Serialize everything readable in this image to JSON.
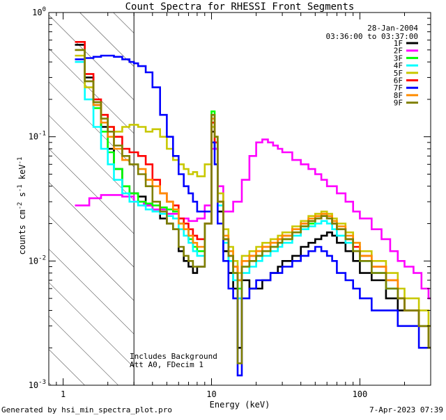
{
  "chart_data": {
    "type": "line",
    "title": "Count Spectra for RHESSI Front Segments",
    "xlabel": "Energy (keV)",
    "ylabel_parts": [
      "counts cm",
      "-2",
      " s",
      "-1",
      " keV",
      "-1"
    ],
    "xscale": "log",
    "yscale": "log",
    "xlim": [
      0.8,
      300
    ],
    "ylim": [
      0.001,
      1
    ],
    "xticks": [
      {
        "v": 1,
        "label": "1"
      },
      {
        "v": 10,
        "label": "10"
      },
      {
        "v": 100,
        "label": "100"
      }
    ],
    "yticks": [
      {
        "v": 1,
        "base": "10",
        "exp": "0"
      },
      {
        "v": 0.1,
        "base": "10",
        "exp": "-1"
      },
      {
        "v": 0.01,
        "base": "10",
        "exp": "-2"
      },
      {
        "v": 0.001,
        "base": "10",
        "exp": "-3"
      }
    ],
    "shaded_region": {
      "x_max": 3,
      "style": "hatch"
    },
    "info_lines": [
      "28-Jan-2004",
      "03:36:00 to 03:37:00"
    ],
    "notes": [
      "Includes Background",
      "Att A0, FDecim 1"
    ],
    "series": [
      {
        "name": "1F",
        "color": "#000000",
        "x": [
          1.2,
          1.4,
          1.6,
          1.8,
          2.0,
          2.2,
          2.5,
          2.8,
          3.2,
          3.6,
          4,
          4.5,
          5,
          5.5,
          6,
          6.5,
          7,
          7.5,
          8,
          9,
          10,
          10.5,
          11,
          12,
          13,
          14,
          15,
          16,
          18,
          20,
          22,
          25,
          28,
          30,
          35,
          40,
          45,
          50,
          55,
          60,
          65,
          70,
          80,
          90,
          100,
          120,
          150,
          180,
          200,
          250,
          290
        ],
        "y": [
          0.55,
          0.3,
          0.18,
          0.12,
          0.08,
          0.055,
          0.04,
          0.035,
          0.033,
          0.028,
          0.025,
          0.022,
          0.02,
          0.018,
          0.012,
          0.01,
          0.009,
          0.008,
          0.009,
          0.02,
          0.11,
          0.08,
          0.025,
          0.012,
          0.008,
          0.006,
          0.002,
          0.007,
          0.006,
          0.006,
          0.007,
          0.008,
          0.009,
          0.01,
          0.011,
          0.013,
          0.014,
          0.015,
          0.016,
          0.017,
          0.016,
          0.014,
          0.012,
          0.01,
          0.008,
          0.007,
          0.005,
          0.004,
          0.004,
          0.003,
          0.002
        ]
      },
      {
        "name": "2F",
        "color": "#ff00ff",
        "x": [
          1.2,
          1.5,
          1.8,
          2.0,
          2.5,
          3.0,
          3.5,
          4,
          5,
          6,
          7,
          8,
          9,
          10,
          11,
          12,
          14,
          16,
          18,
          20,
          22,
          24,
          26,
          28,
          30,
          35,
          40,
          45,
          50,
          55,
          60,
          70,
          80,
          90,
          100,
          120,
          140,
          160,
          180,
          200,
          230,
          260,
          290
        ],
        "y": [
          0.028,
          0.032,
          0.034,
          0.034,
          0.033,
          0.03,
          0.028,
          0.026,
          0.024,
          0.022,
          0.021,
          0.022,
          0.028,
          0.08,
          0.04,
          0.025,
          0.03,
          0.045,
          0.07,
          0.09,
          0.095,
          0.09,
          0.085,
          0.08,
          0.075,
          0.065,
          0.06,
          0.055,
          0.05,
          0.045,
          0.04,
          0.035,
          0.03,
          0.025,
          0.022,
          0.018,
          0.015,
          0.012,
          0.01,
          0.009,
          0.008,
          0.006,
          0.005
        ]
      },
      {
        "name": "3F",
        "color": "#00ff00",
        "x": [
          1.2,
          1.4,
          1.6,
          1.8,
          2.0,
          2.2,
          2.5,
          2.8,
          3.2,
          3.6,
          4,
          4.5,
          5,
          5.5,
          6,
          6.5,
          7,
          7.5,
          8,
          9,
          10,
          10.5,
          11,
          12,
          13,
          14,
          15,
          16,
          18,
          20,
          22,
          25,
          28,
          30,
          35,
          40,
          45,
          50,
          55,
          60,
          65,
          70,
          80,
          90,
          100,
          120,
          150,
          180,
          200,
          250,
          290
        ],
        "y": [
          0.5,
          0.28,
          0.17,
          0.11,
          0.075,
          0.055,
          0.04,
          0.035,
          0.03,
          0.029,
          0.028,
          0.027,
          0.026,
          0.025,
          0.02,
          0.018,
          0.015,
          0.013,
          0.012,
          0.02,
          0.16,
          0.1,
          0.03,
          0.015,
          0.01,
          0.008,
          0.006,
          0.009,
          0.01,
          0.011,
          0.012,
          0.013,
          0.014,
          0.015,
          0.017,
          0.019,
          0.02,
          0.022,
          0.023,
          0.022,
          0.02,
          0.018,
          0.015,
          0.012,
          0.01,
          0.008,
          0.006,
          0.005,
          0.004,
          0.003,
          0.002
        ]
      },
      {
        "name": "4F",
        "color": "#00ffff",
        "x": [
          1.2,
          1.4,
          1.6,
          1.8,
          2.0,
          2.2,
          2.5,
          2.8,
          3.2,
          3.6,
          4,
          4.5,
          5,
          5.5,
          6,
          6.5,
          7,
          7.5,
          8,
          9,
          10,
          10.5,
          11,
          12,
          13,
          14,
          15,
          16,
          18,
          20,
          22,
          25,
          28,
          30,
          35,
          40,
          45,
          50,
          55,
          60,
          65,
          70,
          80,
          90,
          100,
          120,
          150,
          180,
          200,
          250,
          290
        ],
        "y": [
          0.4,
          0.2,
          0.12,
          0.08,
          0.06,
          0.045,
          0.035,
          0.03,
          0.028,
          0.026,
          0.025,
          0.024,
          0.023,
          0.022,
          0.018,
          0.016,
          0.014,
          0.012,
          0.011,
          0.02,
          0.12,
          0.09,
          0.028,
          0.014,
          0.01,
          0.007,
          0.005,
          0.008,
          0.009,
          0.01,
          0.011,
          0.012,
          0.013,
          0.014,
          0.016,
          0.018,
          0.019,
          0.02,
          0.021,
          0.02,
          0.018,
          0.016,
          0.014,
          0.012,
          0.01,
          0.008,
          0.006,
          0.005,
          0.004,
          0.003,
          0.002
        ]
      },
      {
        "name": "5F",
        "color": "#c8c800",
        "x": [
          1.2,
          1.4,
          1.6,
          1.8,
          2.0,
          2.2,
          2.5,
          2.8,
          3.2,
          3.6,
          4,
          4.5,
          5,
          5.5,
          6,
          6.5,
          7,
          7.5,
          8,
          9,
          10,
          10.5,
          11,
          12,
          13,
          14,
          15,
          16,
          18,
          20,
          22,
          25,
          28,
          30,
          35,
          40,
          45,
          50,
          55,
          60,
          65,
          70,
          80,
          90,
          100,
          120,
          150,
          180,
          200,
          250,
          290
        ],
        "y": [
          0.45,
          0.25,
          0.19,
          0.15,
          0.12,
          0.11,
          0.12,
          0.125,
          0.12,
          0.11,
          0.115,
          0.1,
          0.08,
          0.065,
          0.06,
          0.055,
          0.05,
          0.052,
          0.048,
          0.06,
          0.12,
          0.09,
          0.035,
          0.018,
          0.013,
          0.01,
          0.008,
          0.011,
          0.012,
          0.013,
          0.014,
          0.015,
          0.016,
          0.017,
          0.019,
          0.021,
          0.023,
          0.024,
          0.025,
          0.024,
          0.022,
          0.02,
          0.017,
          0.014,
          0.012,
          0.01,
          0.008,
          0.006,
          0.005,
          0.004,
          0.003
        ]
      },
      {
        "name": "6F",
        "color": "#ff0000",
        "x": [
          1.2,
          1.4,
          1.6,
          1.8,
          2.0,
          2.2,
          2.5,
          2.8,
          3.2,
          3.6,
          4,
          4.5,
          5,
          5.5,
          6,
          6.5,
          7,
          7.5,
          8,
          9,
          10,
          10.5,
          11,
          12,
          13,
          14,
          15,
          16,
          18,
          20,
          22,
          25,
          28,
          30,
          35,
          40,
          45,
          50,
          55,
          60,
          65,
          70,
          80,
          90,
          100,
          120,
          150,
          180,
          200,
          250,
          290
        ],
        "y": [
          0.58,
          0.32,
          0.2,
          0.15,
          0.12,
          0.1,
          0.08,
          0.075,
          0.07,
          0.06,
          0.045,
          0.035,
          0.03,
          0.028,
          0.022,
          0.02,
          0.018,
          0.016,
          0.015,
          0.02,
          0.13,
          0.09,
          0.03,
          0.015,
          0.011,
          0.009,
          0.007,
          0.01,
          0.011,
          0.012,
          0.013,
          0.014,
          0.015,
          0.016,
          0.018,
          0.02,
          0.021,
          0.022,
          0.023,
          0.022,
          0.02,
          0.018,
          0.015,
          0.013,
          0.011,
          0.009,
          0.007,
          0.005,
          0.004,
          0.003,
          0.002
        ]
      },
      {
        "name": "7F",
        "color": "#0000ff",
        "x": [
          1.2,
          1.4,
          1.6,
          1.8,
          2.0,
          2.2,
          2.5,
          2.8,
          3.0,
          3.2,
          3.6,
          4,
          4.5,
          5,
          5.5,
          6,
          6.5,
          7,
          7.5,
          8,
          9,
          10,
          10.5,
          11,
          12,
          13,
          14,
          15,
          16,
          18,
          20,
          22,
          25,
          28,
          30,
          35,
          40,
          45,
          50,
          55,
          60,
          65,
          70,
          80,
          90,
          100,
          120,
          150,
          180,
          200,
          250,
          290
        ],
        "y": [
          0.42,
          0.43,
          0.44,
          0.45,
          0.45,
          0.44,
          0.42,
          0.4,
          0.39,
          0.37,
          0.33,
          0.25,
          0.15,
          0.1,
          0.07,
          0.05,
          0.04,
          0.035,
          0.03,
          0.025,
          0.025,
          0.09,
          0.06,
          0.02,
          0.01,
          0.006,
          0.005,
          0.0012,
          0.005,
          0.006,
          0.007,
          0.007,
          0.008,
          0.008,
          0.009,
          0.01,
          0.011,
          0.012,
          0.013,
          0.012,
          0.011,
          0.01,
          0.008,
          0.007,
          0.006,
          0.005,
          0.004,
          0.004,
          0.003,
          0.003,
          0.002,
          0.002
        ]
      },
      {
        "name": "8F",
        "color": "#ff8c00",
        "x": [
          1.2,
          1.4,
          1.6,
          1.8,
          2.0,
          2.2,
          2.5,
          2.8,
          3.2,
          3.6,
          4,
          4.5,
          5,
          5.5,
          6,
          6.5,
          7,
          7.5,
          8,
          9,
          10,
          10.5,
          11,
          12,
          13,
          14,
          15,
          16,
          18,
          20,
          22,
          25,
          28,
          30,
          35,
          40,
          45,
          50,
          55,
          60,
          65,
          70,
          80,
          90,
          100,
          120,
          150,
          180,
          200,
          250,
          290
        ],
        "y": [
          0.5,
          0.28,
          0.18,
          0.13,
          0.1,
          0.08,
          0.065,
          0.06,
          0.055,
          0.045,
          0.04,
          0.035,
          0.03,
          0.026,
          0.02,
          0.018,
          0.016,
          0.014,
          0.013,
          0.02,
          0.14,
          0.1,
          0.03,
          0.016,
          0.012,
          0.009,
          0.007,
          0.01,
          0.011,
          0.012,
          0.013,
          0.014,
          0.015,
          0.016,
          0.018,
          0.02,
          0.022,
          0.023,
          0.024,
          0.023,
          0.021,
          0.019,
          0.016,
          0.014,
          0.011,
          0.009,
          0.007,
          0.005,
          0.004,
          0.003,
          0.002
        ]
      },
      {
        "name": "9F",
        "color": "#808000",
        "x": [
          1.2,
          1.4,
          1.6,
          1.8,
          2.0,
          2.2,
          2.5,
          2.8,
          3.2,
          3.6,
          4,
          4.5,
          5,
          5.5,
          6,
          6.5,
          7,
          7.5,
          8,
          9,
          10,
          10.5,
          11,
          12,
          13,
          14,
          15,
          16,
          18,
          20,
          22,
          25,
          28,
          30,
          35,
          40,
          45,
          50,
          55,
          60,
          65,
          70,
          80,
          90,
          100,
          120,
          150,
          180,
          200,
          250,
          290
        ],
        "y": [
          0.5,
          0.28,
          0.19,
          0.14,
          0.11,
          0.085,
          0.07,
          0.06,
          0.05,
          0.04,
          0.03,
          0.025,
          0.02,
          0.018,
          0.013,
          0.011,
          0.01,
          0.009,
          0.009,
          0.02,
          0.15,
          0.1,
          0.03,
          0.015,
          0.011,
          0.008,
          0.0015,
          0.009,
          0.01,
          0.011,
          0.012,
          0.013,
          0.014,
          0.015,
          0.017,
          0.019,
          0.021,
          0.022,
          0.023,
          0.022,
          0.02,
          0.018,
          0.015,
          0.012,
          0.01,
          0.008,
          0.006,
          0.005,
          0.004,
          0.003,
          0.002
        ]
      }
    ]
  },
  "footer": {
    "left": "Generated by hsi_min_spectra_plot.pro",
    "right": "7-Apr-2023 07:39"
  }
}
